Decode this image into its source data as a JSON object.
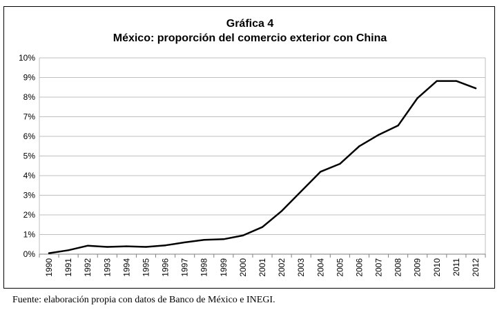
{
  "chart_data": {
    "type": "line",
    "title": "Gráfica 4",
    "subtitle": "México: proporción del comercio exterior con China",
    "xlabel": "",
    "ylabel": "",
    "ylim": [
      0,
      10
    ],
    "y_ticks": [
      "0%",
      "1%",
      "2%",
      "3%",
      "4%",
      "5%",
      "6%",
      "7%",
      "8%",
      "9%",
      "10%"
    ],
    "grid": true,
    "legend": "none",
    "x": [
      "1990",
      "1991",
      "1992",
      "1993",
      "1994",
      "1995",
      "1996",
      "1997",
      "1998",
      "1999",
      "2000",
      "2001",
      "2002",
      "2003",
      "2004",
      "2005",
      "2006",
      "2007",
      "2008",
      "2009",
      "2010",
      "2011",
      "2012"
    ],
    "series": [
      {
        "values": [
          0.05,
          0.2,
          0.43,
          0.37,
          0.4,
          0.37,
          0.45,
          0.6,
          0.73,
          0.76,
          0.95,
          1.38,
          2.2,
          3.2,
          4.2,
          4.6,
          5.5,
          6.08,
          6.55,
          7.95,
          8.82,
          8.82,
          8.45
        ]
      }
    ],
    "line_color": "#000000",
    "grid_color": "#bfbfbf"
  },
  "footer": {
    "source": "Fuente: elaboración propia con datos de Banco de México e INEGI."
  }
}
